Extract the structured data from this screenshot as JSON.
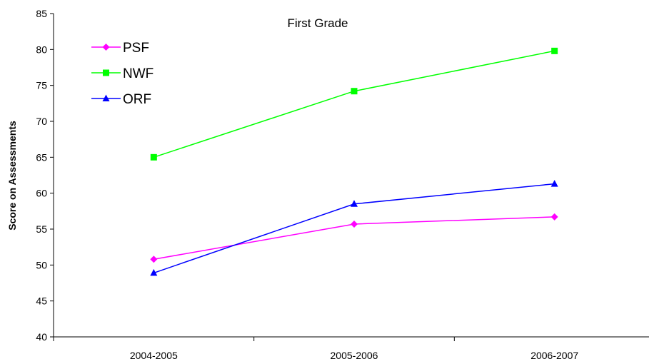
{
  "chart_data": {
    "type": "line",
    "title": "First Grade",
    "xlabel": "",
    "ylabel": "Score on Assessments",
    "categories": [
      "2004-2005",
      "2005-2006",
      "2006-2007"
    ],
    "ylim": [
      40,
      85
    ],
    "yticks": [
      40,
      45,
      50,
      55,
      60,
      65,
      70,
      75,
      80,
      85
    ],
    "grid": false,
    "legend_position": "top-left",
    "series": [
      {
        "name": "PSF",
        "values": [
          50.8,
          55.7,
          56.7
        ],
        "color": "#ff00ff",
        "marker": "diamond"
      },
      {
        "name": "NWF",
        "values": [
          65.0,
          74.2,
          79.8
        ],
        "color": "#00ff00",
        "marker": "square"
      },
      {
        "name": "ORF",
        "values": [
          48.9,
          58.5,
          61.3
        ],
        "color": "#0000ff",
        "marker": "triangle"
      }
    ]
  }
}
